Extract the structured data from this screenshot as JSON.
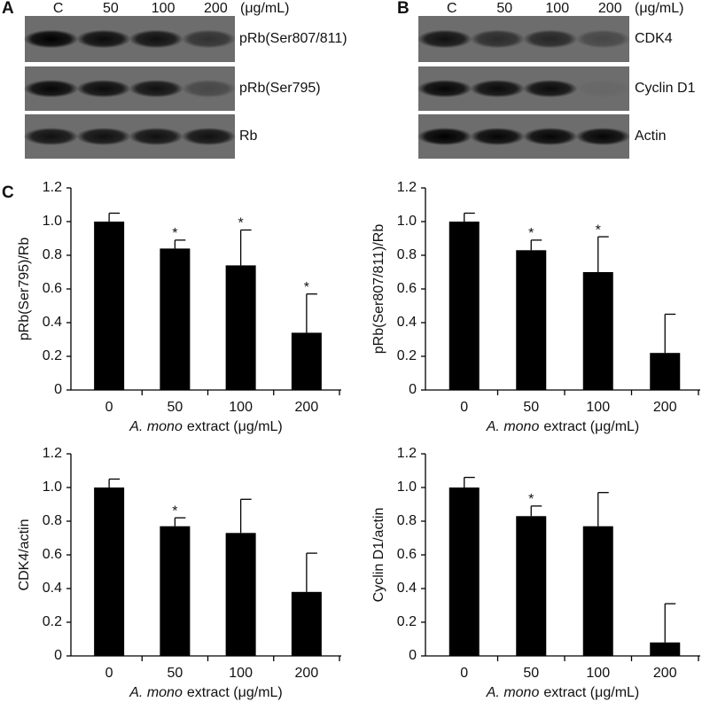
{
  "blots": [
    {
      "label": "A",
      "lanes": [
        "C",
        "50",
        "100",
        "200"
      ],
      "unit": "(μg/mL)",
      "rows": [
        "pRb(Ser807/811)",
        "pRb(Ser795)",
        "Rb"
      ]
    },
    {
      "label": "B",
      "lanes": [
        "C",
        "50",
        "100",
        "200"
      ],
      "unit": "(μg/mL)",
      "rows": [
        "CDK4",
        "Cyclin D1",
        "Actin"
      ]
    }
  ],
  "panel_c_label": "C",
  "chart_data": [
    {
      "type": "bar",
      "ylabel": "pRb(Ser795)/Rb",
      "xlabel_italic": "A. mono",
      "xlabel": "extract (μg/mL)",
      "categories": [
        "0",
        "50",
        "100",
        "200"
      ],
      "values": [
        1.0,
        0.84,
        0.74,
        0.34
      ],
      "errors": [
        0.05,
        0.05,
        0.21,
        0.23
      ],
      "stars": [
        null,
        "*",
        "*",
        "*"
      ],
      "color": "#000000",
      "ylim": [
        0,
        1.2
      ],
      "yticks": [
        0,
        0.2,
        0.4,
        0.6,
        0.8,
        {
          "value": 1,
          "label": "1.0"
        },
        1.2
      ]
    },
    {
      "type": "bar",
      "ylabel": "pRb(Ser807/811)/Rb",
      "xlabel_italic": "A. mono",
      "xlabel": "extract (μg/mL)",
      "categories": [
        "0",
        "50",
        "100",
        "200"
      ],
      "values": [
        1.0,
        0.83,
        0.7,
        0.22
      ],
      "errors": [
        0.05,
        0.06,
        0.21,
        0.23
      ],
      "stars": [
        null,
        "*",
        "*",
        null
      ],
      "color": "#000000",
      "ylim": [
        0,
        1.2
      ],
      "yticks": [
        0,
        0.2,
        0.4,
        0.6,
        0.8,
        {
          "value": 1,
          "label": "1.0"
        },
        1.2
      ]
    },
    {
      "type": "bar",
      "ylabel": "CDK4/actin",
      "xlabel_italic": "A. mono",
      "xlabel": "extract (μg/mL)",
      "categories": [
        "0",
        "50",
        "100",
        "200"
      ],
      "values": [
        1.0,
        0.77,
        0.73,
        0.38
      ],
      "errors": [
        0.05,
        0.05,
        0.2,
        0.23
      ],
      "stars": [
        null,
        "*",
        null,
        null
      ],
      "color": "#000000",
      "ylim": [
        0,
        1.2
      ],
      "yticks": [
        0,
        0.2,
        0.4,
        0.6,
        0.8,
        {
          "value": 1,
          "label": "1.0"
        },
        1.2
      ]
    },
    {
      "type": "bar",
      "ylabel": "Cyclin D1/actin",
      "xlabel_italic": "A. mono",
      "xlabel": "extract (μg/mL)",
      "categories": [
        "0",
        "50",
        "100",
        "200"
      ],
      "values": [
        1.0,
        0.83,
        0.77,
        0.08
      ],
      "errors": [
        0.06,
        0.06,
        0.2,
        0.23
      ],
      "stars": [
        null,
        "*",
        null,
        null
      ],
      "color": "#000000",
      "ylim": [
        0,
        1.2
      ],
      "yticks": [
        0,
        0.2,
        0.4,
        0.6,
        0.8,
        {
          "value": 1,
          "label": "1.0"
        },
        1.2
      ]
    }
  ]
}
